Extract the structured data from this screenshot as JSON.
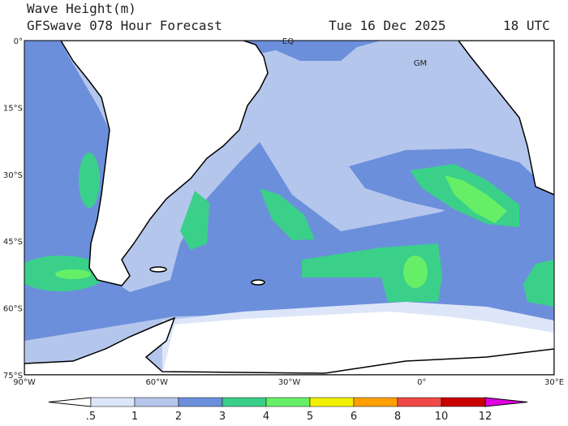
{
  "header": {
    "title": "Wave Height(m)",
    "subtitle": "GFSwave 078 Hour Forecast",
    "date": "Tue 16 Dec 2025",
    "time": "18 UTC"
  },
  "map": {
    "lat_labels": [
      "0°",
      "15°S",
      "30°S",
      "45°S",
      "60°S",
      "75°S"
    ],
    "lon_labels": [
      "90°W",
      "60°W",
      "30°W",
      "0°",
      "30°E"
    ],
    "places": [
      "EQ",
      "GM"
    ]
  },
  "colorbar": {
    "labels": [
      ".5",
      "1",
      "2",
      "3",
      "4",
      "5",
      "6",
      "8",
      "10",
      "12"
    ],
    "colors": [
      "#ffffff",
      "#dde6f8",
      "#b4c6ec",
      "#6c8fdb",
      "#3ad08a",
      "#66ef66",
      "#f0f000",
      "#ffa000",
      "#f04848",
      "#c80000",
      "#e000e0"
    ]
  }
}
